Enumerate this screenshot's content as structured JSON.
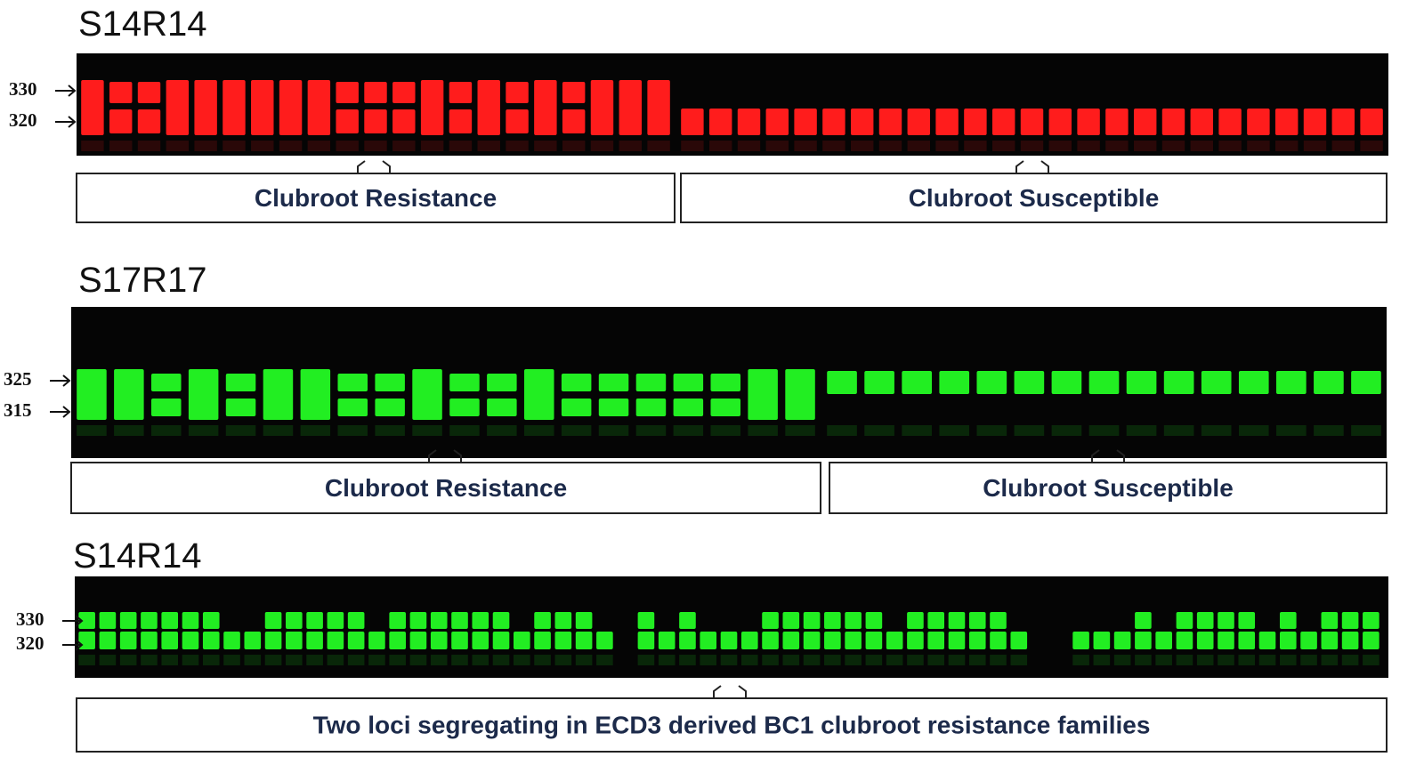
{
  "panels": [
    {
      "title": "S14R14",
      "markers": [
        330,
        320
      ],
      "captions": [
        "Clubroot Resistance",
        "Clubroot Susceptible"
      ]
    },
    {
      "title": "S17R17",
      "markers": [
        325,
        315
      ],
      "captions": [
        "Clubroot Resistance",
        "Clubroot Susceptible"
      ]
    },
    {
      "title": "S14R14",
      "markers": [
        330,
        320
      ],
      "captions": [
        "Two loci segregating in ECD3 derived BC1 clubroot resistance families"
      ]
    }
  ]
}
